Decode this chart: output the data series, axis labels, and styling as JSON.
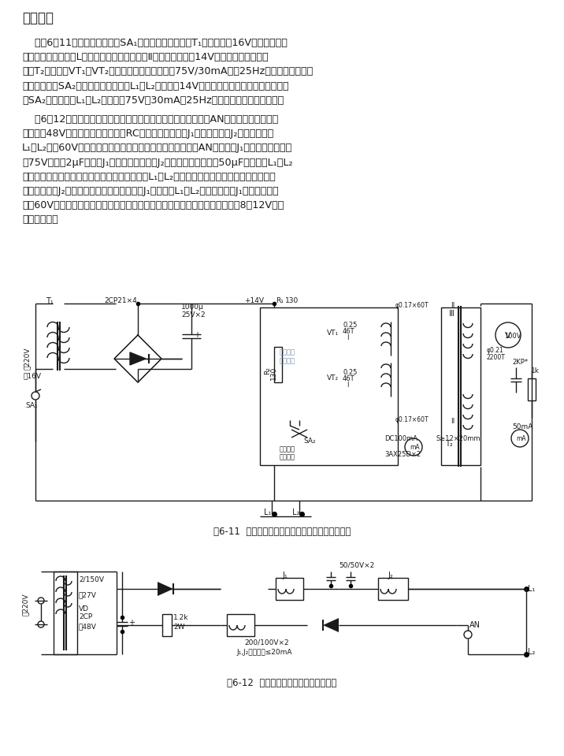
{
  "bg_color": "#ffffff",
  "title": "工作原理",
  "fig1_caption": "图6-11  检修电话机用的直流电源和振铃信号电路图",
  "fig2_caption": "图6-12  模拟局线馈电、振铃电源电路图",
  "para1_lines": [
    "    如图6－11所示，当电源开关SA₁闭合时，电源变压器T₁感应出交流16V电压，经全桥",
    "整流后，再经过电感L和两只电解电容器组成的Ⅱ型滤波后，产生14V直流电压加至自激变",
    "压器T₂和晶体管VT₁、VT₂，产生振荡，在次级输出75V/30mA交流25Hz振铃信号供电话机",
    "振铃使用。当SA₂键开关向上时，供给L₁、L₂端子直流14V作为电话机的直流电源。当扳键开",
    "关SA₂向下时，在L₁、L₂两端产生75V、30mA、25Hz交流铃流供话机振铃使用。"
  ],
  "para2_lines": [
    "    图6－12表示的是另一种模拟局线馈电、振铃电源电路。当开关AN未闭合时，电源变压",
    "器供出的48V交流电经二极管整流、RC滤波限流后，通过J₁的常闭触点和J₂线圈绕组供给",
    "L₁、L₂两端60V左右的直流电，作为话机的直流电源。当开关AN闭合时，J₁吸合，变压器的交",
    "流75V电压经2μF电容和J₁的常闭触点，又经J₂线圈绕组并联的两只50μF电解，在L₁、L₂",
    "两端产生振铃铃流作为话机振铃使用。这时如果L₁、L₂两端接有话机时，则话机振铃。当拿起",
    "话机手柄时，J₂线圈绕组有电流流过而吸合，J₁被释放。L₁、L₂两端则变为由J₁常闭触点输出",
    "直流60V，由于这时话机手柄已被提起，话机本身内阻串入电路，而使电压降至8～12V左右",
    "供通话使用。"
  ]
}
